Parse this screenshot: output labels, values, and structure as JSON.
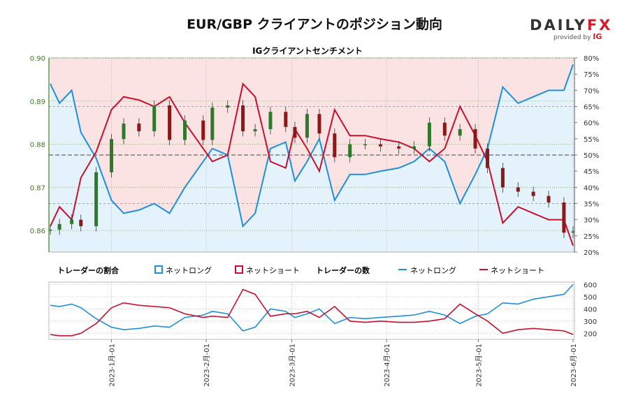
{
  "header": {
    "title": "EUR/GBP クライアントのポジション動向",
    "subtitle": "IGクライアントセンチメント",
    "logo_main_a": "DAILY",
    "logo_main_b": "FX",
    "logo_sub": "provided by",
    "logo_sub_brand": "IG"
  },
  "colors": {
    "long": "#1e8fdc",
    "short": "#c8102e",
    "long_bg": "#e4f2fb",
    "short_bg": "#fbe3e4",
    "up_candle": "#2d7a2d",
    "down_candle": "#8a1a1a",
    "left_axis": "#3c7a1e"
  },
  "legend": {
    "ratio_label": "トレーダーの割合",
    "ratio_long": "ネットロング",
    "ratio_short": "ネットショート",
    "count_label": "トレーダーの数",
    "count_long": "ネットロング",
    "count_short": "ネットショート"
  },
  "chart_data": {
    "type": "line",
    "x_dates": [
      "2022-12-12",
      "2022-12-15",
      "2022-12-19",
      "2022-12-22",
      "2022-12-27",
      "2023-01-01",
      "2023-01-05",
      "2023-01-10",
      "2023-01-15",
      "2023-01-20",
      "2023-01-25",
      "2023-01-31",
      "2023-02-03",
      "2023-02-08",
      "2023-02-13",
      "2023-02-17",
      "2023-02-22",
      "2023-02-27",
      "2023-03-02",
      "2023-03-06",
      "2023-03-10",
      "2023-03-15",
      "2023-03-20",
      "2023-03-25",
      "2023-03-30",
      "2023-04-05",
      "2023-04-10",
      "2023-04-15",
      "2023-04-20",
      "2023-04-25",
      "2023-04-30",
      "2023-05-04",
      "2023-05-09",
      "2023-05-14",
      "2023-05-19",
      "2023-05-24",
      "2023-05-29",
      "2023-06-01"
    ],
    "price_close": [
      0.8602,
      0.8615,
      0.8625,
      0.861,
      0.8735,
      0.8812,
      0.8848,
      0.883,
      0.889,
      0.881,
      0.8855,
      0.881,
      0.8885,
      0.889,
      0.883,
      0.8835,
      0.8875,
      0.884,
      0.8815,
      0.887,
      0.8825,
      0.877,
      0.88,
      0.88,
      0.8795,
      0.879,
      0.8795,
      0.885,
      0.882,
      0.8835,
      0.879,
      0.8745,
      0.87,
      0.869,
      0.868,
      0.8665,
      0.8595,
      0.8598
    ],
    "long_pct": [
      72,
      66,
      70,
      57,
      49,
      36,
      32,
      33,
      35,
      32,
      40,
      48,
      52,
      50,
      28,
      32,
      52,
      54,
      42,
      48,
      55,
      36,
      44,
      44,
      45,
      46,
      48,
      52,
      48,
      35,
      44,
      52,
      71,
      66,
      68,
      70,
      70,
      78
    ],
    "long_count": [
      430,
      420,
      440,
      410,
      320,
      250,
      230,
      240,
      260,
      250,
      330,
      350,
      380,
      360,
      220,
      250,
      400,
      380,
      330,
      360,
      400,
      280,
      330,
      320,
      330,
      340,
      350,
      380,
      350,
      280,
      340,
      360,
      450,
      440,
      480,
      500,
      520,
      600
    ],
    "short_count": [
      190,
      180,
      180,
      200,
      280,
      410,
      450,
      430,
      420,
      410,
      360,
      330,
      340,
      330,
      560,
      520,
      340,
      360,
      360,
      380,
      330,
      420,
      300,
      290,
      300,
      290,
      290,
      300,
      320,
      440,
      360,
      300,
      200,
      230,
      240,
      230,
      220,
      190
    ],
    "left_axis": {
      "ticks": [
        "0.86",
        "0.87",
        "0.88",
        "0.89",
        "0.90"
      ],
      "range": [
        0.855,
        0.9
      ]
    },
    "right_axis": {
      "ticks": [
        "20%",
        "25%",
        "30%",
        "35%",
        "40%",
        "45%",
        "50%",
        "55%",
        "60%",
        "65%",
        "70%",
        "75%",
        "80%"
      ],
      "range": [
        20,
        80
      ]
    },
    "count_axis": {
      "ticks": [
        "200",
        "300",
        "400",
        "500",
        "600"
      ],
      "range": [
        150,
        620
      ]
    },
    "x_axis": {
      "ticks": [
        "2023-1月-01",
        "2023-2月-01",
        "2023-3月-01",
        "2023-4月-01",
        "2023-5月-01",
        "2023-6月-01"
      ],
      "tick_dates": [
        "2023-01-01",
        "2023-02-01",
        "2023-03-01",
        "2023-04-01",
        "2023-05-01",
        "2023-06-01"
      ]
    }
  }
}
